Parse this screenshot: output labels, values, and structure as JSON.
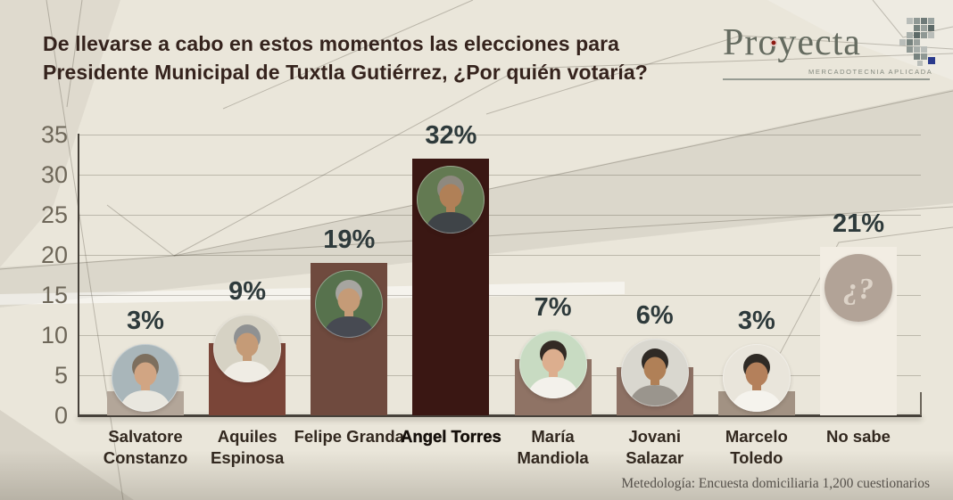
{
  "header": {
    "title": "De llevarse a cabo en estos momentos las elecciones para Presidente Municipal de Tuxtla Gutiérrez, ¿Por quién votaría?",
    "logo": {
      "name": "Proyecta",
      "tagline": "MERCADOTECNIA APLICADA",
      "accent_dot_color": "#8d1a12",
      "text_color": "#656b60"
    }
  },
  "footer": {
    "methodology": "Metedología: Encuesta domiciliaria 1,200 cuestionarios"
  },
  "chart_data": {
    "type": "bar",
    "title": "De llevarse a cabo en estos momentos las elecciones para Presidente Municipal de Tuxtla Gutiérrez, ¿Por quién votaría?",
    "xlabel": "",
    "ylabel": "",
    "unit": "%",
    "ylim": [
      0,
      35
    ],
    "yticks": [
      0,
      5,
      10,
      15,
      20,
      25,
      30,
      35
    ],
    "grid": true,
    "legend": false,
    "categories": [
      "Salvatore Constanzo",
      "Aquiles Espinosa",
      "Felipe Granda",
      "Angel Torres",
      "María Mandiola",
      "Jovani Salazar",
      "Marcelo Toledo",
      "No sabe"
    ],
    "values": [
      3,
      9,
      19,
      32,
      7,
      6,
      3,
      21
    ],
    "bars": [
      {
        "name": "Salvatore Constanzo",
        "value": 3,
        "label": "3%",
        "color": "#b3a699",
        "emphasized": false,
        "avatar": {
          "type": "portrait",
          "bg": "#a9b6ba",
          "hair": "#7d6f5e",
          "skin": "#d1a583",
          "shirt": "#e9e7df"
        }
      },
      {
        "name": "Aquiles Espinosa",
        "value": 9,
        "label": "9%",
        "color": "#7a4538",
        "emphasized": false,
        "avatar": {
          "type": "portrait",
          "bg": "#d6d2c4",
          "hair": "#8f9192",
          "skin": "#c59b77",
          "shirt": "#efece4"
        }
      },
      {
        "name": "Felipe Granda",
        "value": 19,
        "label": "19%",
        "color": "#6f4a3e",
        "emphasized": false,
        "avatar": {
          "type": "portrait",
          "bg": "#57724d",
          "hair": "#a7a5a0",
          "skin": "#c59b77",
          "shirt": "#474a52"
        }
      },
      {
        "name": "Angel Torres",
        "value": 32,
        "label": "32%",
        "color": "#3a1713",
        "emphasized": true,
        "avatar": {
          "type": "portrait",
          "bg": "#637a52",
          "hair": "#8e897f",
          "skin": "#b08057",
          "shirt": "#3f4448"
        }
      },
      {
        "name": "María Mandiola",
        "value": 7,
        "label": "7%",
        "color": "#8f7365",
        "emphasized": false,
        "avatar": {
          "type": "portrait",
          "bg": "#c8dbc2",
          "hair": "#332a24",
          "skin": "#dcae8e",
          "shirt": "#f3f1eb"
        }
      },
      {
        "name": "Jovani Salazar",
        "value": 6,
        "label": "6%",
        "color": "#8d7164",
        "emphasized": false,
        "avatar": {
          "type": "portrait",
          "bg": "#d9d7cf",
          "hair": "#2f2a25",
          "skin": "#b08057",
          "shirt": "#9a958d"
        }
      },
      {
        "name": "Marcelo Toledo",
        "value": 3,
        "label": "3%",
        "color": "#a29283",
        "emphasized": false,
        "avatar": {
          "type": "portrait",
          "bg": "#e9e5db",
          "hair": "#2f2a25",
          "skin": "#b4805b",
          "shirt": "#f5f3ed"
        }
      },
      {
        "name": "No sabe",
        "value": 21,
        "label": "21%",
        "color": "#f2ede3",
        "emphasized": false,
        "avatar": {
          "type": "question",
          "circle": "#b2a397",
          "glyph": "¿?",
          "glyph_color": "#ddd3c8"
        }
      }
    ]
  }
}
